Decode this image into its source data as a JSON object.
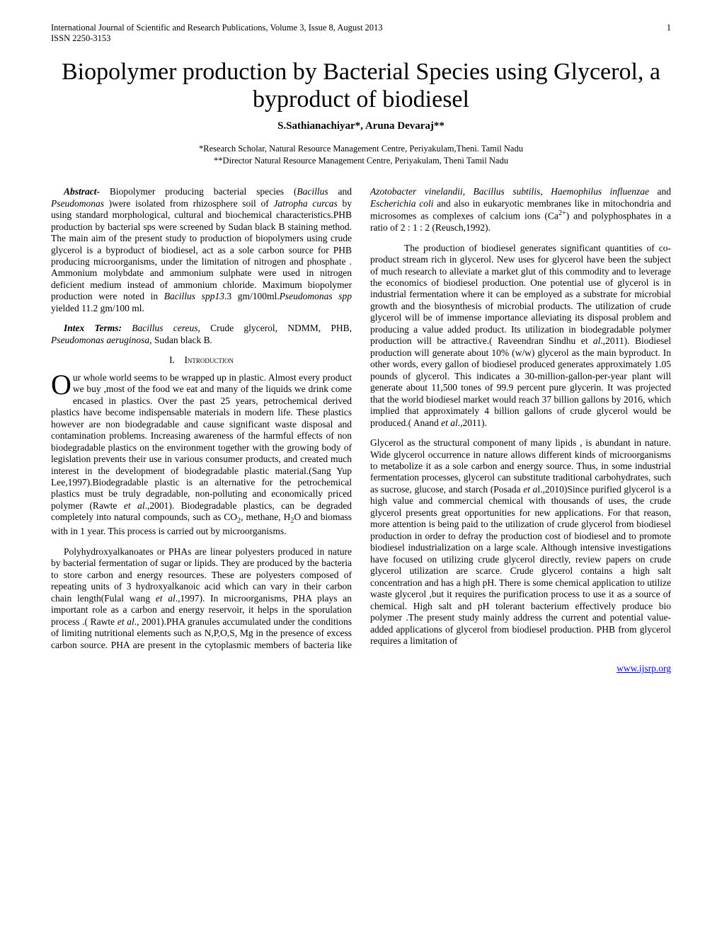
{
  "header": {
    "journal": "International Journal of Scientific and Research Publications, Volume 3, Issue 8, August 2013",
    "page_number": "1",
    "issn": "ISSN 2250-3153"
  },
  "title": "Biopolymer production by Bacterial Species using Glycerol, a byproduct of biodiesel",
  "authors": "S.Sathianachiyar*, Aruna Devaraj**",
  "affiliations": {
    "a1": "*Research Scholar,   Natural Resource Management Centre, Periyakulam,Theni. Tamil Nadu",
    "a2": "**Director Natural Resource Management Centre, Periyakulam, Theni Tamil Nadu"
  },
  "abstract_label": "Abstract-",
  "abstract_text": " Biopolymer  producing bacterial species (Bacillus and Pseudomonas )were isolated from  rhizosphere soil of Jatropha curcas  by using standard  morphological, cultural  and biochemical characteristics.PHB production by bacterial sps were screened  by Sudan black B staining method. The main aim of the present study to production of biopolymers using crude glycerol is a byproduct of biodiesel, act  as a sole carbon source for PHB producing microorganisms, under the limitation of nitrogen  and phosphate . Ammonium molybdate and ammonium sulphate were used in nitrogen deficient medium instead of ammonium chloride. Maximum biopolymer production were noted in Bacillus spp13.3 gm/100ml.Pseudomonas spp yielded 11.2 gm/100 ml.",
  "intex_label": "Intex Terms:",
  "intex_text": " Bacillus cereus, Crude glycerol, NDMM, PHB, Pseudomonas aeruginosa, Sudan black B.",
  "section": {
    "number": "I.",
    "title": "Introduction"
  },
  "dropcap": "O",
  "para1": "ur whole world seems to be wrapped up in plastic.  Almost every product we buy ,most of the food we eat and many of the liquids we drink come encased in plastics. Over the past 25 years, petrochemical derived plastics have become indispensable materials in modern life.  These plastics however are non biodegradable and cause significant waste disposal and contamination problems. Increasing awareness of the harmful effects of non biodegradable plastics on the environment together with the growing body of legislation prevents their use in various consumer products, and created much interest in the development of biodegradable plastic material.(Sang Yup Lee,1997).Biodegradable plastic is an alternative for the petrochemical plastics must be truly degradable, non-polluting and economically priced polymer (Rawte et al.,2001). Biodegradable plastics, can be degraded completely into natural compounds, such as CO₂, methane, H₂O  and biomass with in 1 year.  This process is carried out by microorganisms.",
  "para2": "Polyhydroxyalkanoates or PHAs are linear polyesters produced in nature by bacterial fermentation of sugar or lipids. They are produced by the bacteria to store carbon and energy resources. These are polyesters composed of repeating units of  3 hydroxyalkanoic acid which can vary in their carbon chain length(Fulal wang et al.,1997). In microorganisms, PHA plays an important role as a carbon and energy reservoir, it  helps in the sporulation process .( Rawte et al., 2001).PHA granules accumulated under the conditions of limiting nutritional elements such as N,P,O,S, Mg in the presence of excess carbon source. PHA are present in the cytoplasmic members of bacteria like Azotobacter vinelandii, Bacillus subtilis, Haemophilus influenzae and Escherichia coli and also in eukaryotic membranes like in mitochondria and microsomes as complexes of calcium ions (Ca²⁺) and polyphosphates in a ratio of 2 : 1 : 2 (Reusch,1992).",
  "para3": "The production of biodiesel generates significant quantities of co-product stream rich in glycerol. New uses for glycerol have been the subject of much research to alleviate a market glut of this commodity and to leverage the economics of biodiesel production. One potential use of glycerol is in industrial fermentation where it can be employed as a substrate for microbial growth and the biosynthesis of microbial products. The utilization of crude glycerol will be of immense importance alleviating its disposal problem and producing a value added product. Its utilization in biodegradable polymer production will be attractive.( Raveendran Sindhu et al.,2011). Biodiesel production will generate about 10% (w/w) glycerol as the main byproduct. In other words, every gallon of biodiesel produced generates approximately 1.05 pounds of glycerol. This indicates a 30-million-gallon-per-year plant will generate about 11,500 tones of 99.9 percent pure glycerin. It was projected that the world biodiesel market would reach 37 billion gallons by 2016, which implied that approximately 4 billion gallons of crude glycerol would be produced.( Anand et al.,2011).",
  "para4": "Glycerol as the structural component of many lipids , is abundant in nature. Wide glycerol occurrence in nature allows different kinds of microorganisms to metabolize it as a sole carbon and energy source. Thus, in some industrial fermentation processes, glycerol can substitute traditional carbohydrates, such as sucrose, glucose, and  starch (Posada et al.,2010)Since purified glycerol is a high value and commercial chemical with thousands of uses, the crude glycerol presents great opportunities for new applications. For that reason, more attention is being paid to the utilization of crude glycerol from biodiesel production in order to defray the production cost of biodiesel and to promote biodiesel industrialization on a large scale. Although intensive investigations have focused on utilizing crude glycerol directly, review papers on crude glycerol utilization are scarce. Crude glycerol contains a high salt concentration and has a high pH. There is some chemical application to utilize waste glycerol ,but it requires the purification process to use it as a source of chemical. High salt and pH tolerant bacterium effectively produce bio polymer .The present study  mainly address the current and potential value-added applications of glycerol from biodiesel production. PHB from glycerol requires a limitation of",
  "footer_link": "www.ijsrp.org"
}
